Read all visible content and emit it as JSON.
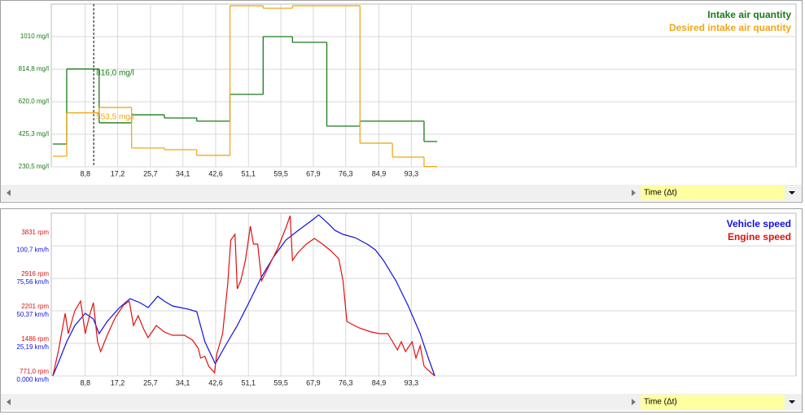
{
  "chart_data": [
    {
      "type": "line",
      "step": "post",
      "xlim": [
        0,
        193
      ],
      "xticks": [
        {
          "value": 8.8,
          "label": "8,8"
        },
        {
          "value": 17.2,
          "label": "17,2"
        },
        {
          "value": 25.7,
          "label": "25,7"
        },
        {
          "value": 34.1,
          "label": "34,1"
        },
        {
          "value": 42.6,
          "label": "42,6"
        },
        {
          "value": 51.1,
          "label": "51,1"
        },
        {
          "value": 59.5,
          "label": "59,5"
        },
        {
          "value": 67.9,
          "label": "67,9"
        },
        {
          "value": 76.3,
          "label": "76,3"
        },
        {
          "value": 84.9,
          "label": "84,9"
        },
        {
          "value": 93.3,
          "label": "93,3"
        }
      ],
      "ylim": [
        230.5,
        1205
      ],
      "yticks": [
        {
          "value": 230.5,
          "label": "230,5 mg/l"
        },
        {
          "value": 425.3,
          "label": "425,3 mg/l"
        },
        {
          "value": 620,
          "label": "620,0 mg/l"
        },
        {
          "value": 814.8,
          "label": "814,8 mg/l"
        },
        {
          "value": 1010,
          "label": "1010 mg/l"
        }
      ],
      "grid": true,
      "xlabel": "Time (Δt)",
      "series": [
        {
          "name": "Intake air quantity",
          "color": "#1a7a1a",
          "x": [
            0.4,
            4,
            12.4,
            20.8,
            29.3,
            37.7,
            46.3,
            54.9,
            62.5,
            71.4,
            80,
            96.6,
            100
          ],
          "values": [
            367,
            816,
            494,
            542,
            523,
            504,
            664,
            1010,
            976,
            474,
            504,
            382,
            382
          ]
        },
        {
          "name": "Desired intake air quantity",
          "color": "#f0a818",
          "x": [
            0.4,
            4,
            12.4,
            20.8,
            29.3,
            37.7,
            46.3,
            54.9,
            62.5,
            80,
            88.4,
            96.6,
            100
          ],
          "values": [
            294,
            553.5,
            586,
            343,
            333,
            299,
            1195,
            1180,
            1195,
            372,
            289,
            232,
            232
          ]
        }
      ],
      "cursor": {
        "x": 11,
        "values": [
          816.0,
          553.5
        ],
        "value_labels": [
          "816,0 mg/l",
          "553,5 mg/l"
        ]
      }
    },
    {
      "type": "line",
      "xlim": [
        0,
        193
      ],
      "xticks": [
        {
          "value": 8.8,
          "label": "8,8"
        },
        {
          "value": 17.2,
          "label": "17,2"
        },
        {
          "value": 25.7,
          "label": "25,7"
        },
        {
          "value": 34.1,
          "label": "34,1"
        },
        {
          "value": 42.6,
          "label": "42,6"
        },
        {
          "value": 51.1,
          "label": "51,1"
        },
        {
          "value": 59.5,
          "label": "59,5"
        },
        {
          "value": 67.9,
          "label": "67,9"
        },
        {
          "value": 76.3,
          "label": "76,3"
        },
        {
          "value": 84.9,
          "label": "84,9"
        },
        {
          "value": 93.3,
          "label": "93,3"
        }
      ],
      "ylim": [
        0,
        126
      ],
      "yticks": [
        {
          "value": 0,
          "label": "0,000 km/h"
        },
        {
          "value": 25.19,
          "label": "25,19 km/h"
        },
        {
          "value": 50.37,
          "label": "50,37 km/h"
        },
        {
          "value": 75.56,
          "label": "75,56 km/h"
        },
        {
          "value": 100.7,
          "label": "100,7 km/h"
        }
      ],
      "y2lim": [
        771,
        4346
      ],
      "y2ticks": [
        {
          "value": 771,
          "label": "771,0 rpm"
        },
        {
          "value": 1486,
          "label": "1486 rpm"
        },
        {
          "value": 2201,
          "label": "2201 rpm"
        },
        {
          "value": 2916,
          "label": "2916 rpm"
        },
        {
          "value": 3831,
          "label": "3831 rpm"
        }
      ],
      "grid": true,
      "xlabel": "Time (Δt)",
      "series": [
        {
          "name": "Vehicle speed",
          "color": "#1010e0",
          "x": [
            0.4,
            1.9,
            4.0,
            6.1,
            8.8,
            10.9,
            12.4,
            14.5,
            17.7,
            20.4,
            23.0,
            25.1,
            27.6,
            29.3,
            31.4,
            33.5,
            35.6,
            37.7,
            39.8,
            42.5,
            45.1,
            48.2,
            51.4,
            54.5,
            57.7,
            60.8,
            64.0,
            67.2,
            69.3,
            71.4,
            73.5,
            75.6,
            78.7,
            81.9,
            84.0,
            86.1,
            89.3,
            92.4,
            95.6,
            97.7,
            99.4
          ],
          "values": [
            0,
            10.7,
            26.5,
            39.0,
            48.5,
            44.1,
            32.7,
            42.2,
            52.9,
            59.8,
            56.7,
            52.9,
            61.7,
            57.9,
            54.2,
            52.9,
            51.6,
            49.8,
            26.5,
            9.4,
            23.3,
            39.0,
            57.9,
            76.8,
            92.6,
            105.2,
            112.7,
            119.7,
            124.7,
            119.0,
            112.7,
            109.6,
            107.1,
            102.0,
            97.6,
            89.4,
            73.7,
            54.8,
            32.7,
            13.9,
            0
          ]
        },
        {
          "name": "Engine speed",
          "color": "#e01010",
          "axis": "y2",
          "x": [
            0.4,
            1.9,
            3.6,
            4.4,
            6.1,
            7.6,
            8.8,
            9.9,
            10.9,
            12.0,
            12.8,
            14.5,
            16.6,
            18.7,
            20.2,
            21.3,
            22.5,
            24.0,
            25.1,
            27.2,
            29.3,
            31.4,
            34.5,
            36.6,
            38.1,
            38.7,
            39.8,
            40.8,
            42.3,
            42.9,
            44.4,
            45.7,
            46.5,
            47.6,
            48.2,
            49.1,
            50.3,
            51.6,
            52.4,
            53.5,
            54.5,
            56.6,
            58.7,
            60.8,
            61.9,
            62.5,
            64.0,
            66.1,
            68.2,
            70.3,
            72.4,
            74.5,
            75.6,
            76.6,
            77.7,
            79.8,
            82.9,
            85.1,
            87.2,
            88.2,
            89.7,
            90.7,
            91.8,
            93.5,
            94.5,
            95.6,
            96.6,
            97.7,
            99.4
          ],
          "values": [
            771,
            1343,
            2147,
            1700,
            2201,
            2416,
            1700,
            2094,
            2380,
            1522,
            1307,
            1665,
            2058,
            2326,
            2416,
            1879,
            2094,
            1790,
            1611,
            1879,
            1736,
            1665,
            1665,
            1558,
            1379,
            1164,
            1200,
            986,
            843,
            1254,
            1700,
            2773,
            3756,
            3881,
            2684,
            2862,
            3309,
            4060,
            3667,
            3667,
            2862,
            3220,
            3577,
            4024,
            4292,
            3309,
            3488,
            3667,
            3792,
            3667,
            3524,
            3345,
            2862,
            1969,
            1915,
            1826,
            1736,
            1700,
            1700,
            1558,
            1343,
            1522,
            1307,
            1522,
            1164,
            1432,
            986,
            896,
            771
          ]
        }
      ]
    }
  ]
}
